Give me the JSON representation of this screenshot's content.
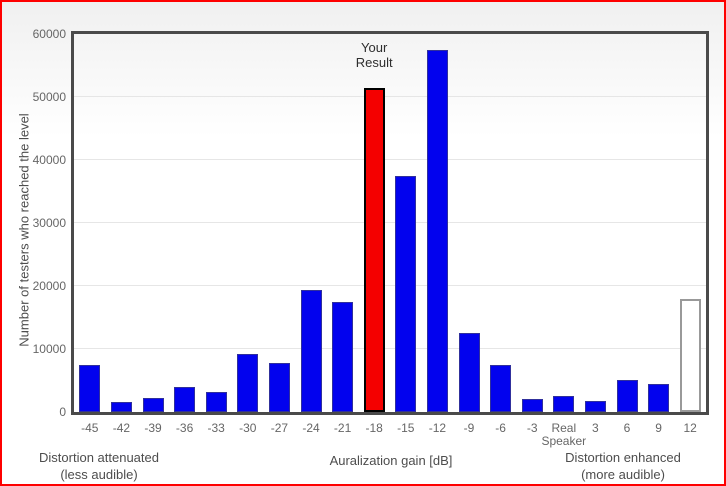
{
  "page": {
    "border_color": "#fe0000"
  },
  "chart_data": {
    "type": "bar",
    "title": "",
    "ylabel": "Number of testers who reached the level",
    "xlabel": "Auralization gain [dB]",
    "ylim": [
      0,
      60000
    ],
    "yticks": [
      0,
      10000,
      20000,
      30000,
      40000,
      50000,
      60000
    ],
    "grid": "horizontal-only",
    "legend": "none",
    "categories": [
      "-45",
      "-42",
      "-39",
      "-36",
      "-33",
      "-30",
      "-27",
      "-24",
      "-21",
      "-18",
      "-15",
      "-12",
      "-9",
      "-6",
      "-3",
      "Real Speaker",
      "3",
      "6",
      "9",
      "12"
    ],
    "values": [
      7500,
      1600,
      2300,
      4000,
      3100,
      9200,
      7700,
      19400,
      17500,
      51500,
      37500,
      57400,
      12500,
      7400,
      2000,
      2500,
      1700,
      5000,
      4500,
      18000
    ],
    "highlight_bar": {
      "category": "-18",
      "value": 51500,
      "label_line1": "Your",
      "label_line2": "Result",
      "fill": "#f40000",
      "border": "#000000"
    },
    "outline_bar": {
      "category": "12",
      "value": 18000,
      "fill": "#ffffff",
      "border": "#999999"
    },
    "colors": {
      "bar_fill": "#0202ee",
      "bar_border": "#30309c",
      "grid": "#e6e6e6",
      "frame": "#4a4a4a",
      "tick_text": "#666666"
    }
  },
  "annotations": {
    "left_line1": "Distortion attenuated",
    "left_line2": "(less audible)",
    "right_line1": "Distortion enhanced",
    "right_line2": "(more audible)"
  }
}
